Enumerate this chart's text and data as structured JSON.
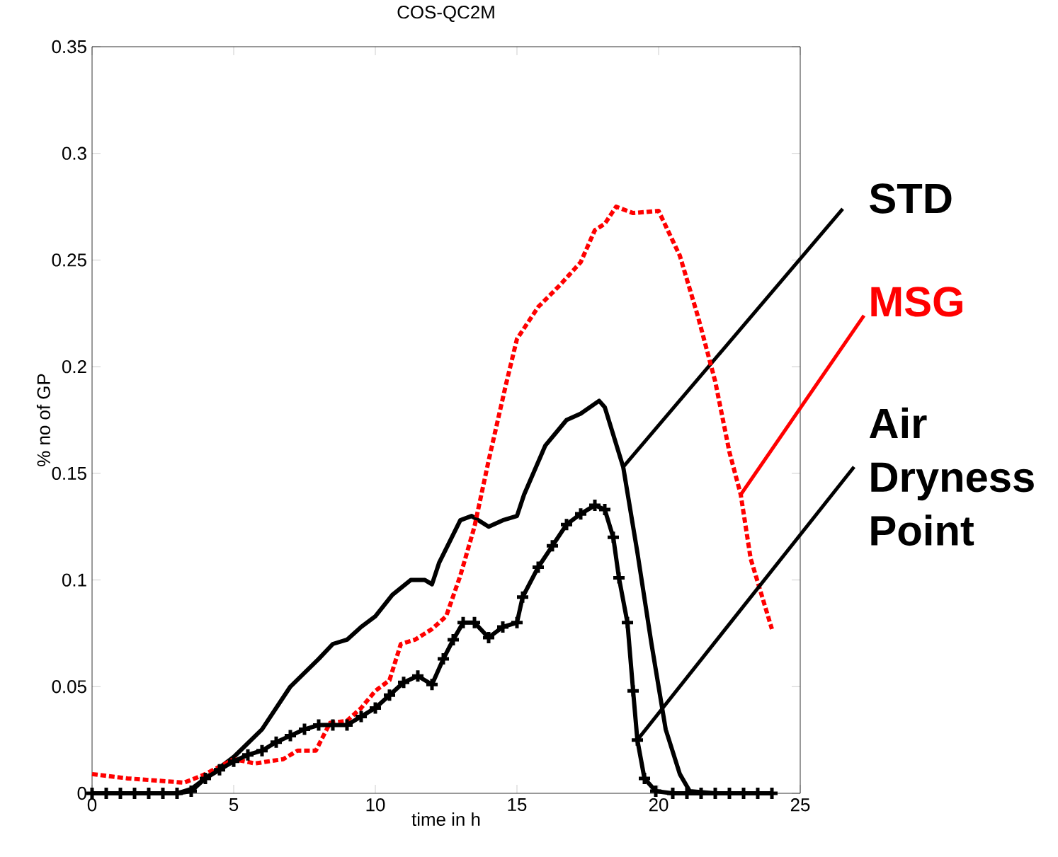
{
  "chart_data": {
    "type": "line",
    "title": "COS-QC2M",
    "xlabel": "time in h",
    "ylabel": "% no of GP",
    "xlim": [
      0,
      25
    ],
    "xticks": [
      0,
      5,
      10,
      15,
      20,
      25
    ],
    "ylim": [
      0,
      0.35
    ],
    "yticks": [
      0,
      0.05,
      0.1,
      0.15,
      0.2,
      0.25,
      0.3,
      0.35
    ],
    "series": [
      {
        "name": "STD",
        "color": "#000000",
        "line_style": "solid",
        "x": [
          0,
          1,
          2,
          3,
          3.5,
          4,
          5,
          6,
          7,
          8,
          8.5,
          9,
          9.5,
          10,
          10.6,
          11.25,
          11.75,
          12,
          12.25,
          13,
          13.4,
          14,
          14.5,
          15,
          15.25,
          16,
          16.75,
          17.25,
          17.9,
          18.1,
          18.75,
          19.25,
          19.75,
          20.25,
          20.75,
          21.1,
          22,
          23,
          24
        ],
        "values": [
          0,
          0,
          0,
          0,
          0.002,
          0.007,
          0.017,
          0.03,
          0.05,
          0.063,
          0.07,
          0.072,
          0.078,
          0.083,
          0.093,
          0.1,
          0.1,
          0.098,
          0.108,
          0.128,
          0.13,
          0.125,
          0.128,
          0.13,
          0.14,
          0.163,
          0.175,
          0.178,
          0.184,
          0.181,
          0.153,
          0.113,
          0.07,
          0.03,
          0.009,
          0.001,
          0,
          0,
          0
        ]
      },
      {
        "name": "MSG",
        "color": "#ff0000",
        "line_style": "dotted",
        "x": [
          0,
          1.25,
          2.25,
          3.25,
          4,
          5,
          5.75,
          6.75,
          7.25,
          7.9,
          8.4,
          9,
          9.5,
          10,
          10.5,
          10.9,
          11.4,
          12,
          12.5,
          13,
          13.5,
          14,
          14.6,
          15,
          15.75,
          16.5,
          17.25,
          17.75,
          18.1,
          18.5,
          19.1,
          20,
          20.75,
          21.4,
          22,
          22.5,
          22.9,
          23.25,
          24
        ],
        "values": [
          0.009,
          0.007,
          0.006,
          0.005,
          0.009,
          0.016,
          0.014,
          0.016,
          0.02,
          0.02,
          0.033,
          0.034,
          0.04,
          0.048,
          0.053,
          0.07,
          0.072,
          0.077,
          0.083,
          0.102,
          0.125,
          0.156,
          0.191,
          0.213,
          0.228,
          0.238,
          0.249,
          0.264,
          0.267,
          0.275,
          0.272,
          0.273,
          0.252,
          0.223,
          0.193,
          0.16,
          0.14,
          0.11,
          0.077
        ]
      },
      {
        "name": "Air Dryness Point",
        "color": "#000000",
        "line_style": "solid",
        "marker": "cross",
        "x": [
          0,
          0.5,
          1,
          1.5,
          2,
          2.5,
          3,
          3.5,
          4,
          4.5,
          5,
          5.5,
          6,
          6.5,
          7,
          7.5,
          8,
          8.5,
          9,
          9.5,
          10,
          10.5,
          11,
          11.5,
          12,
          12.4,
          12.75,
          13.1,
          13.5,
          14,
          14.5,
          15,
          15.2,
          15.75,
          16.25,
          16.75,
          17.25,
          17.75,
          18.1,
          18.4,
          18.6,
          18.9,
          19.1,
          19.25,
          19.5,
          19.9,
          20.5,
          21,
          21.5,
          22,
          22.5,
          23,
          23.5,
          24
        ],
        "values": [
          0,
          0,
          0,
          0,
          0,
          0,
          0,
          0.001,
          0.007,
          0.011,
          0.015,
          0.018,
          0.02,
          0.024,
          0.027,
          0.03,
          0.032,
          0.032,
          0.032,
          0.036,
          0.04,
          0.046,
          0.052,
          0.055,
          0.051,
          0.063,
          0.072,
          0.08,
          0.08,
          0.073,
          0.078,
          0.08,
          0.092,
          0.106,
          0.116,
          0.126,
          0.131,
          0.135,
          0.133,
          0.12,
          0.101,
          0.08,
          0.048,
          0.025,
          0.007,
          0.001,
          0,
          0,
          0,
          0,
          0,
          0,
          0,
          0
        ]
      }
    ]
  }
}
